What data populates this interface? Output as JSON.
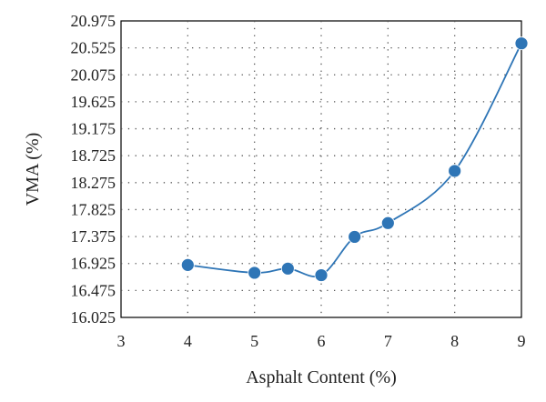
{
  "chart_data": {
    "type": "scatter",
    "title": "",
    "xlabel": "Asphalt Content (%)",
    "ylabel": "VMA (%)",
    "xlim": [
      3,
      9
    ],
    "ylim": [
      16.025,
      20.975
    ],
    "x_ticks": [
      "3",
      "4",
      "5",
      "6",
      "7",
      "8",
      "9"
    ],
    "y_ticks": [
      "16.025",
      "16.475",
      "16.925",
      "17.375",
      "17.825",
      "18.275",
      "18.725",
      "19.175",
      "19.625",
      "20.075",
      "20.525",
      "20.975"
    ],
    "grid": true,
    "series": [
      {
        "x": [
          4,
          5,
          5.5,
          6,
          6.5,
          7,
          8,
          9
        ],
        "y": [
          16.9,
          16.77,
          16.84,
          16.73,
          17.37,
          17.6,
          18.47,
          20.6
        ],
        "color": "#2e75b6",
        "marker": "circle",
        "line": "smooth"
      }
    ]
  }
}
